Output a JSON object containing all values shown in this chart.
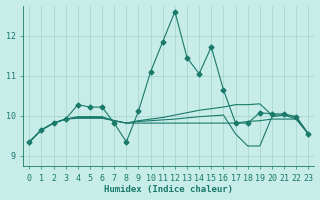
{
  "xlabel": "Humidex (Indice chaleur)",
  "bg_color": "#c8ece8",
  "grid_color": "#a8d8d0",
  "line_color": "#1a7a6a",
  "xlim": [
    -0.5,
    23.5
  ],
  "ylim": [
    8.75,
    12.75
  ],
  "yticks": [
    9,
    10,
    11,
    12
  ],
  "xticks": [
    0,
    1,
    2,
    3,
    4,
    5,
    6,
    7,
    8,
    9,
    10,
    11,
    12,
    13,
    14,
    15,
    16,
    17,
    18,
    19,
    20,
    21,
    22,
    23
  ],
  "series": [
    [
      9.35,
      9.65,
      9.82,
      9.92,
      10.28,
      10.22,
      10.22,
      9.82,
      9.35,
      10.12,
      11.1,
      11.85,
      12.6,
      11.45,
      11.05,
      11.72,
      10.65,
      9.82,
      9.82,
      10.08,
      10.05,
      10.05,
      9.98,
      9.55
    ],
    [
      9.35,
      9.65,
      9.82,
      9.92,
      9.98,
      9.98,
      9.98,
      9.88,
      9.82,
      9.88,
      9.92,
      9.96,
      10.02,
      10.08,
      10.14,
      10.18,
      10.22,
      10.28,
      10.28,
      10.3,
      10.02,
      10.02,
      9.98,
      9.55
    ],
    [
      9.35,
      9.65,
      9.82,
      9.92,
      9.94,
      9.94,
      9.94,
      9.88,
      9.82,
      9.82,
      9.82,
      9.82,
      9.82,
      9.82,
      9.82,
      9.82,
      9.82,
      9.82,
      9.86,
      9.88,
      9.92,
      9.92,
      9.92,
      9.55
    ],
    [
      9.35,
      9.65,
      9.82,
      9.92,
      9.96,
      9.96,
      9.96,
      9.88,
      9.82,
      9.86,
      9.88,
      9.9,
      9.92,
      9.95,
      9.98,
      10.0,
      10.02,
      9.55,
      9.25,
      9.25,
      9.98,
      10.02,
      9.92,
      9.55
    ]
  ],
  "markers": [
    true,
    false,
    false,
    false
  ],
  "xlabel_fontsize": 6.5,
  "tick_fontsize": 6.0
}
